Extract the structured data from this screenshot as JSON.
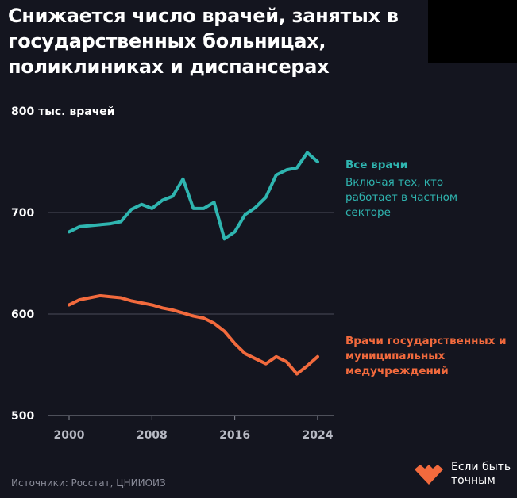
{
  "title": "Снижается число врачей, занятых в государственных больницах, поликлиниках и диспансерах",
  "source": "Источники: Росстат, ЦНИИОИЗ",
  "brand": {
    "line1": "Если быть",
    "line2": "точным",
    "color": "#f26a3d"
  },
  "chart_data": {
    "type": "line",
    "ylabel": "тыс. врачей",
    "ylim": [
      500,
      800
    ],
    "yticks": [
      "500",
      "600",
      "700",
      "800"
    ],
    "xticks": [
      "2000",
      "2008",
      "2016",
      "2024"
    ],
    "x": [
      2000,
      2001,
      2002,
      2003,
      2004,
      2005,
      2006,
      2007,
      2008,
      2009,
      2010,
      2011,
      2012,
      2013,
      2014,
      2015,
      2016,
      2017,
      2018,
      2019,
      2020,
      2021,
      2022,
      2023,
      2024
    ],
    "grid": true,
    "series": [
      {
        "name": "Все врачи",
        "note": "Включая тех, кто работает в частном секторе",
        "color": "#2fb5b0",
        "values": [
          681,
          686,
          687,
          688,
          689,
          691,
          703,
          708,
          704,
          712,
          716,
          733,
          704,
          704,
          710,
          674,
          681,
          698,
          705,
          715,
          737,
          742,
          744,
          759,
          750
        ]
      },
      {
        "name": "Врачи государственных и муниципальных медучреждений",
        "color": "#f26a3d",
        "values": [
          609,
          614,
          616,
          618,
          617,
          616,
          613,
          611,
          609,
          606,
          604,
          601,
          598,
          596,
          591,
          583,
          571,
          561,
          556,
          551,
          558,
          553,
          541,
          549,
          558
        ]
      }
    ]
  }
}
